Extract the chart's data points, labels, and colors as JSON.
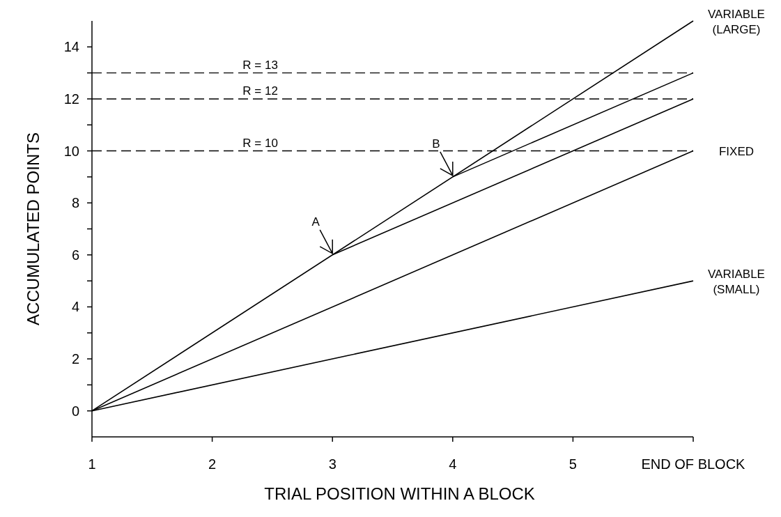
{
  "chart_data": {
    "type": "line",
    "xlabel": "TRIAL POSITION WITHIN A BLOCK",
    "ylabel": "ACCUMULATED POINTS",
    "xlim": [
      1,
      6
    ],
    "xticks": [
      1,
      2,
      3,
      4,
      5,
      {
        "value": 6,
        "label": "END OF BLOCK"
      }
    ],
    "ylim": [
      -1,
      15
    ],
    "yticks": [
      0,
      {
        "value": 1,
        "label": null
      },
      2,
      {
        "value": 3,
        "label": null
      },
      4,
      {
        "value": 5,
        "label": null
      },
      6,
      {
        "value": 7,
        "label": null
      },
      8,
      {
        "value": 9,
        "label": null
      },
      10,
      {
        "value": 11,
        "label": null
      },
      12,
      {
        "value": 13,
        "label": null
      },
      14
    ],
    "grid": false,
    "marker": "none",
    "line_style": "solid",
    "series": [
      {
        "name": "VARIABLE (LARGE)",
        "color": "#000000",
        "x": [
          1,
          6
        ],
        "values": [
          0,
          15
        ]
      },
      {
        "color": "#000000",
        "x": [
          4,
          6
        ],
        "values": [
          9,
          13
        ]
      },
      {
        "color": "#000000",
        "x": [
          3,
          6
        ],
        "values": [
          6,
          12
        ]
      },
      {
        "name": "FIXED",
        "color": "#000000",
        "x": [
          1,
          6
        ],
        "values": [
          0,
          10
        ]
      },
      {
        "name": "VARIABLE (SMALL)",
        "color": "#000000",
        "x": [
          1,
          6
        ],
        "values": [
          0,
          5
        ]
      }
    ],
    "ref_lines": [
      {
        "axis": "y",
        "value": 13,
        "label": "R = 13",
        "line_style": "dashed",
        "color": "#000000"
      },
      {
        "axis": "y",
        "value": 12,
        "label": "R = 12",
        "line_style": "dashed",
        "color": "#000000"
      },
      {
        "axis": "y",
        "value": 10,
        "label": "R = 10",
        "line_style": "dashed",
        "color": "#000000"
      }
    ],
    "annotations": [
      {
        "text": "A",
        "x": 3,
        "y": 6
      },
      {
        "text": "B",
        "x": 4,
        "y": 9
      }
    ]
  }
}
